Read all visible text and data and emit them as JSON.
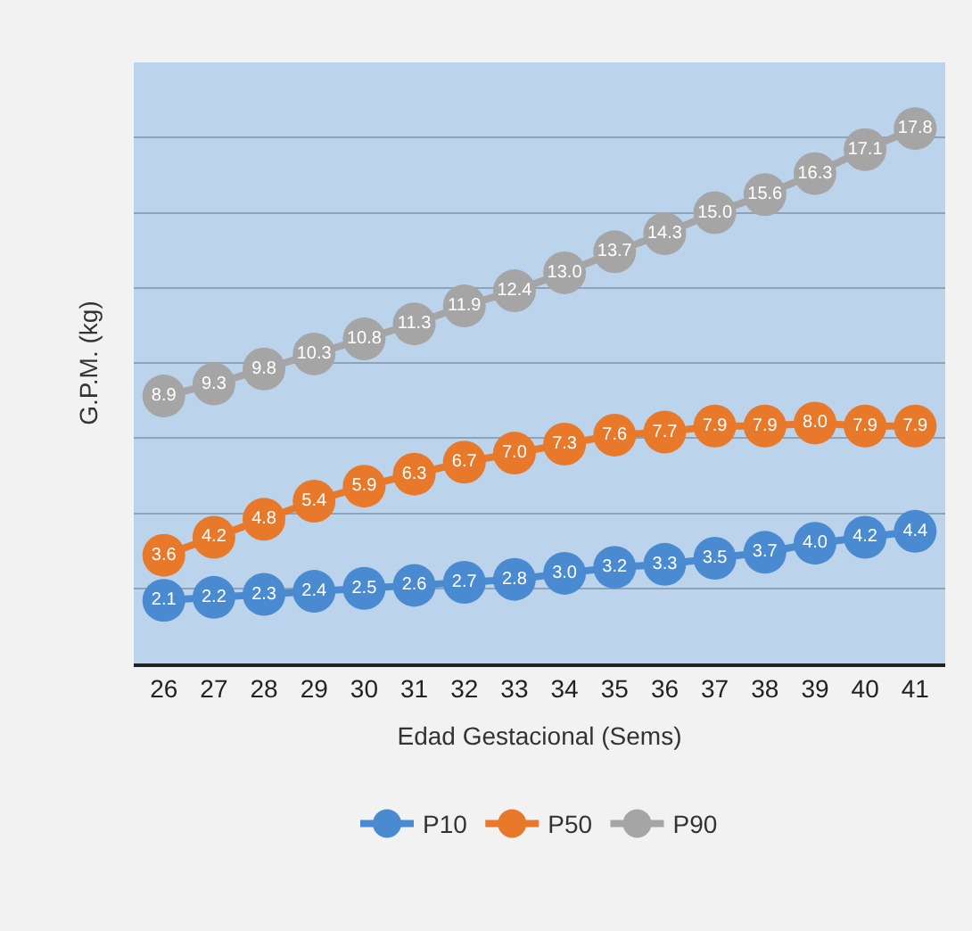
{
  "chart_data": {
    "type": "line",
    "xlabel": "Edad Gestacional (Sems)",
    "ylabel": "G.P.M. (kg)",
    "categories": [
      "26",
      "27",
      "28",
      "29",
      "30",
      "31",
      "32",
      "33",
      "34",
      "35",
      "36",
      "37",
      "38",
      "39",
      "40",
      "41"
    ],
    "series": [
      {
        "name": "P10",
        "color": "#4a8ad0",
        "values": [
          2.1,
          2.2,
          2.3,
          2.4,
          2.5,
          2.6,
          2.7,
          2.8,
          3.0,
          3.2,
          3.3,
          3.5,
          3.7,
          4.0,
          4.2,
          4.4
        ],
        "value_labels": [
          "2.1",
          "2.2",
          "2.3",
          "2.4",
          "2.5",
          "2.6",
          "2.7",
          "2.8",
          "3.0",
          "3.2",
          "3.3",
          "3.5",
          "3.7",
          "4.0",
          "4.2",
          "4.4"
        ]
      },
      {
        "name": "P50",
        "color": "#e8792a",
        "values": [
          3.6,
          4.2,
          4.8,
          5.4,
          5.9,
          6.3,
          6.7,
          7.0,
          7.3,
          7.6,
          7.7,
          7.9,
          7.9,
          8.0,
          7.9,
          7.9
        ],
        "value_labels": [
          "3.6",
          "4.2",
          "4.8",
          "5.4",
          "5.9",
          "6.3",
          "6.7",
          "7.0",
          "7.3",
          "7.6",
          "7.7",
          "7.9",
          "7.9",
          "8.0",
          "7.9",
          "7.9"
        ]
      },
      {
        "name": "P90",
        "color": "#a5a5a5",
        "values": [
          8.9,
          9.3,
          9.8,
          10.3,
          10.8,
          11.3,
          11.9,
          12.4,
          13.0,
          13.7,
          14.3,
          15.0,
          15.6,
          16.3,
          17.1,
          17.8
        ],
        "value_labels": [
          "8.9",
          "9.3",
          "9.8",
          "10.3",
          "10.8",
          "11.3",
          "11.9",
          "12.4",
          "13.0",
          "13.7",
          "14.3",
          "15.0",
          "15.6",
          "16.3",
          "17.1",
          "17.8"
        ]
      }
    ],
    "ylim": [
      0,
      20
    ],
    "yticks": [
      {
        "value": 0,
        "label": null
      },
      {
        "value": 2.5,
        "label": null
      },
      {
        "value": 5,
        "label": null
      },
      {
        "value": 7.5,
        "label": null
      },
      {
        "value": 10,
        "label": null
      },
      {
        "value": 12.5,
        "label": null
      },
      {
        "value": 15,
        "label": null
      },
      {
        "value": 17.5,
        "label": null
      },
      {
        "value": 20,
        "label": null
      }
    ],
    "tick_labels": "x",
    "grid": "y",
    "legend": "bottom",
    "marker": "circle",
    "line_style": "solid"
  }
}
